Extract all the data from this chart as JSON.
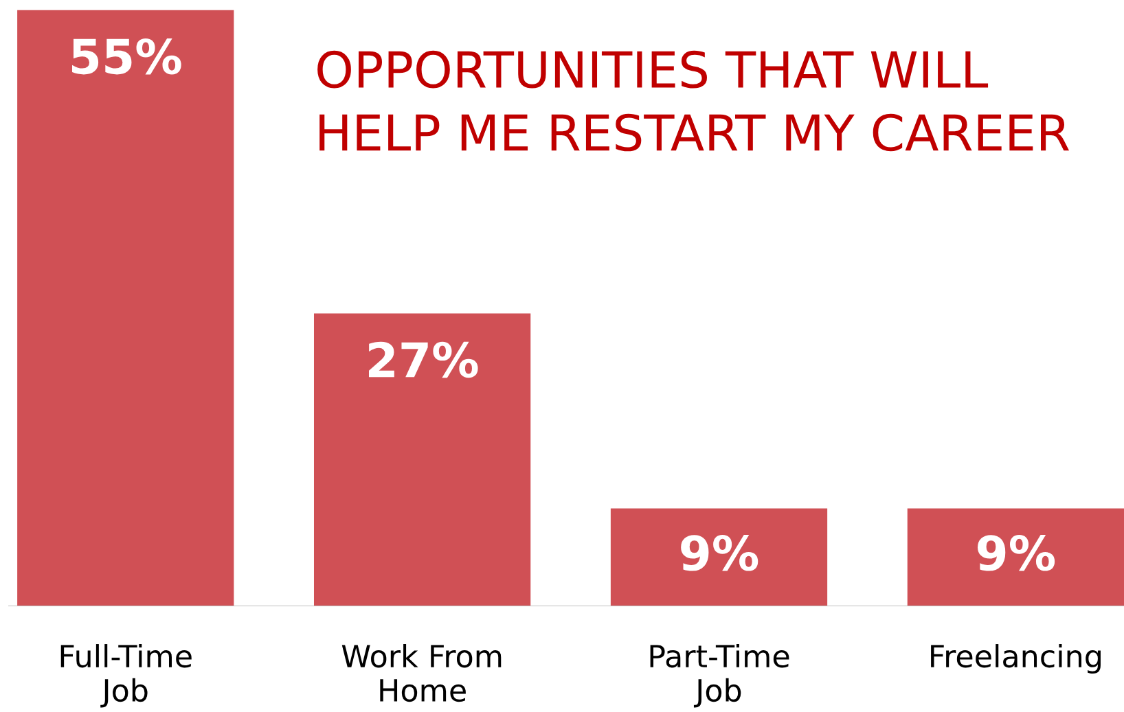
{
  "chart_data": {
    "type": "bar",
    "title": "OPPORTUNITIES THAT WILL\nHELP ME RESTART MY CAREER",
    "categories": [
      "Full-Time\nJob",
      "Work From\nHome",
      "Part-Time\nJob",
      "Freelancing"
    ],
    "values": [
      55,
      27,
      9,
      9
    ],
    "value_labels": [
      "55%",
      "27%",
      "9%",
      "9%"
    ],
    "color": "#d05055",
    "grid": false,
    "legend": false,
    "tick_labels": "x"
  }
}
